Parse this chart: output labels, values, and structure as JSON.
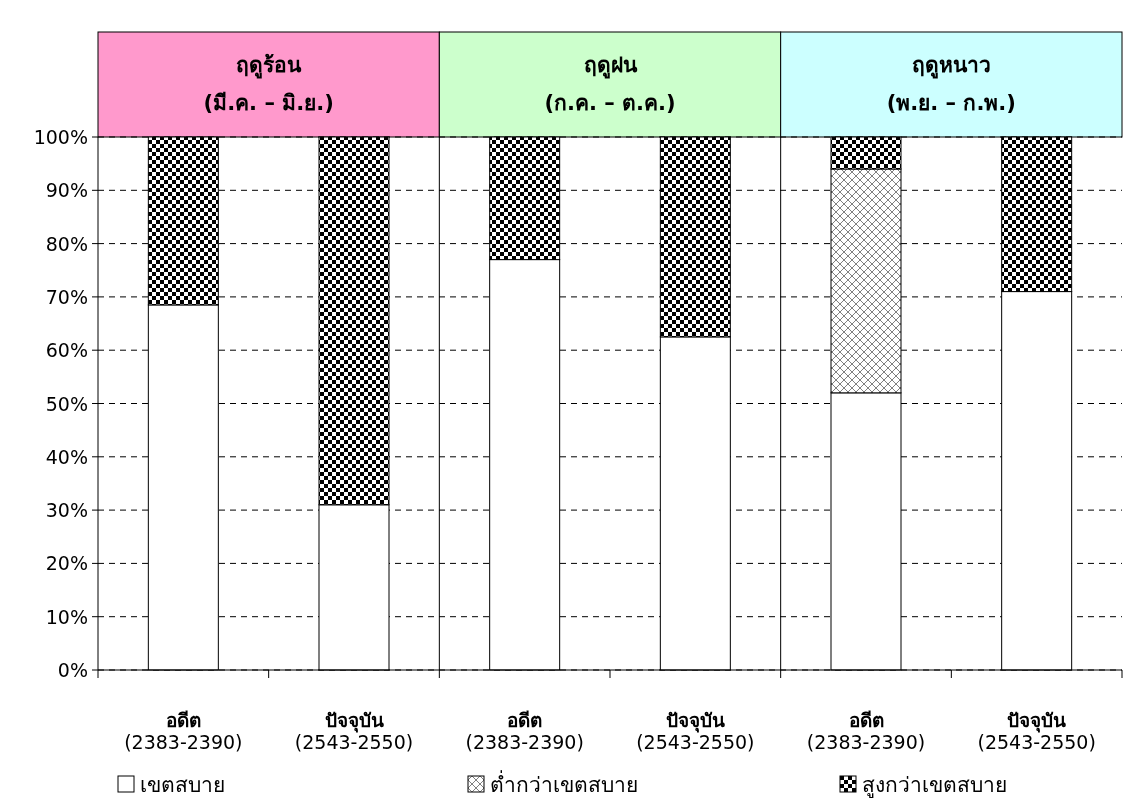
{
  "chart_data": {
    "type": "bar",
    "stacked": true,
    "categories": [
      "**อดีต**\n(2383-2390)",
      "**ปัจจุบัน**\n(2543-2550)",
      "**อดีต**\n(2383-2390)",
      "**ปัจจุบัน**\n(2543-2550)",
      "**อดีต**\n(2383-2390)",
      "**ปัจจุบัน**\n(2543-2550)"
    ],
    "series": [
      {
        "name": "เขตสบาย",
        "color": "#ffffff",
        "values": [
          68.5,
          31,
          77,
          62.5,
          52,
          71
        ]
      },
      {
        "name": "ต่ำกว่าเขตสบาย",
        "color": "#000000",
        "values": [
          null,
          null,
          null,
          null,
          42,
          null
        ]
      },
      {
        "name": "สูงกว่าเขตสบาย",
        "color": "#000000",
        "values": [
          31.5,
          69,
          23,
          37.5,
          6,
          29
        ]
      }
    ],
    "ylim": [
      0,
      100
    ],
    "yticks": [
      {
        "value": 0,
        "label": "0%"
      },
      {
        "value": 10,
        "label": "10%"
      },
      {
        "value": 20,
        "label": "20%"
      },
      {
        "value": 30,
        "label": "30%"
      },
      {
        "value": 40,
        "label": "40%"
      },
      {
        "value": 50,
        "label": "50%"
      },
      {
        "value": 60,
        "label": "60%"
      },
      {
        "value": 70,
        "label": "70%"
      },
      {
        "value": 80,
        "label": "80%"
      },
      {
        "value": 90,
        "label": "90%"
      },
      {
        "value": 100,
        "label": "100%"
      }
    ],
    "annotations": [
      "**ฤดูร้อน**\n**(มี.ค. – มิ.ย.)**",
      "**ฤดูฝน**\n**(ก.ค. – ต.ค.)**",
      "**ฤดูหนาว**\n**(พ.ย. – ก.พ.)**"
    ],
    "grid": "y",
    "legend": "bottom"
  }
}
